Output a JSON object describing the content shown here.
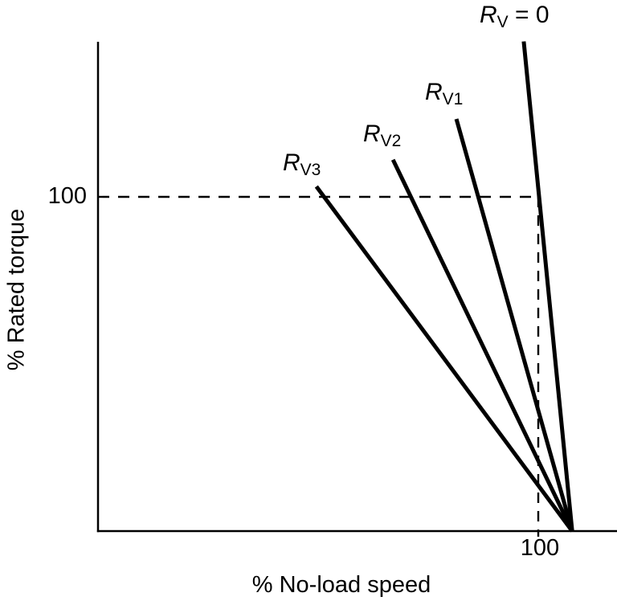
{
  "figure": {
    "background_color": "#ffffff",
    "line_color": "#000000"
  },
  "chart_data": {
    "type": "line",
    "title": "",
    "xlabel": "% No-load speed",
    "ylabel": "% Rated torque",
    "xlim": [
      0,
      118
    ],
    "ylim": [
      0,
      147
    ],
    "x_ticks": [
      100
    ],
    "y_ticks": [
      100
    ],
    "grid": false,
    "legend_position": "inline-labels-above-lines",
    "reference_lines": {
      "horizontal_dashed_y": 100,
      "vertical_dashed_x": 100
    },
    "series": [
      {
        "name": "R_V = 0",
        "label_main": "R",
        "label_sub": "V",
        "label_suffix": " = 0",
        "x": [
          96.7,
          107.7
        ],
        "y": [
          146.5,
          0
        ]
      },
      {
        "name": "R_V1",
        "label_main": "R",
        "label_sub": "V1",
        "label_suffix": "",
        "x": [
          81.4,
          107.7
        ],
        "y": [
          123.3,
          0
        ]
      },
      {
        "name": "R_V2",
        "label_main": "R",
        "label_sub": "V2",
        "label_suffix": "",
        "x": [
          67.0,
          107.7
        ],
        "y": [
          111.1,
          0
        ]
      },
      {
        "name": "R_V3",
        "label_main": "R",
        "label_sub": "V3",
        "label_suffix": "",
        "x": [
          49.6,
          107.7
        ],
        "y": [
          103.1,
          0
        ]
      }
    ]
  }
}
